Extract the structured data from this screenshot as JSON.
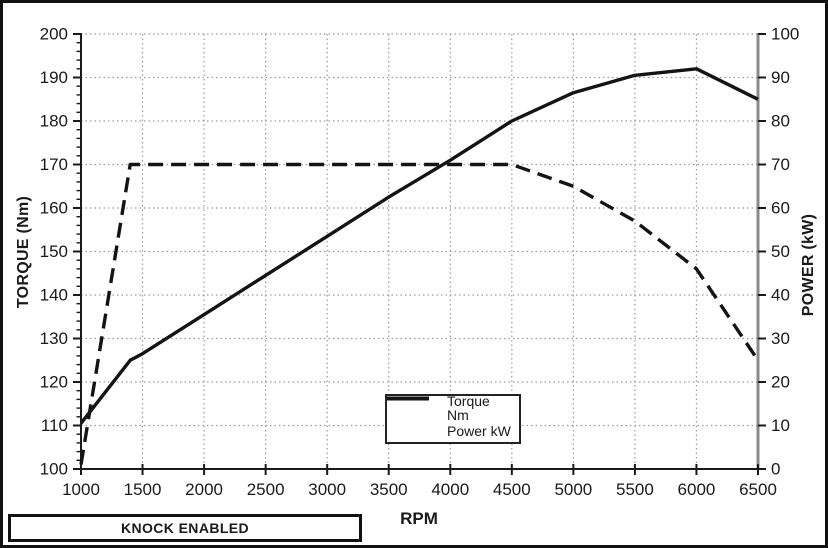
{
  "annotation": {
    "label": "KNOCK ENABLED"
  },
  "colors": {
    "line": "#141414",
    "grid": "#9a9a9a",
    "right_spine": "#8a8a8a",
    "spine": "#1a1a1a",
    "background": "#ffffff",
    "text": "#1a1a1a"
  },
  "chart_data": {
    "type": "line",
    "title": "",
    "xlabel": "RPM",
    "x_range": [
      1000,
      6500
    ],
    "x_ticks": [
      1000,
      1500,
      2000,
      2500,
      3000,
      3500,
      4000,
      4500,
      5000,
      5500,
      6000,
      6500
    ],
    "x_tick_labels": [
      "1000",
      "1500",
      "2000",
      "2500",
      "3000",
      "3500",
      "4000",
      "4500",
      "5000",
      "5500",
      "6000",
      "6500"
    ],
    "grid": true,
    "axes": {
      "left": {
        "label": "TORQUE (Nm)",
        "range": [
          100,
          200
        ],
        "tick_step": 10,
        "minor_tick_step": 2,
        "tick_labels": [
          "100",
          "110",
          "120",
          "130",
          "140",
          "150",
          "160",
          "170",
          "180",
          "190",
          "200"
        ]
      },
      "right": {
        "label": "POWER (kW)",
        "range": [
          0,
          100
        ],
        "tick_step": 10,
        "tick_labels": [
          "0",
          "10",
          "20",
          "30",
          "40",
          "50",
          "60",
          "70",
          "80",
          "90",
          "100"
        ]
      }
    },
    "legend": {
      "position": "inside-bottom-center",
      "items": [
        "Torque Nm",
        "Power kW"
      ]
    },
    "series": [
      {
        "name": "Torque Nm",
        "axis": "left",
        "line_style": "dashed",
        "points": [
          [
            1000,
            101
          ],
          [
            1400,
            170
          ],
          [
            1500,
            170
          ],
          [
            2000,
            170
          ],
          [
            2500,
            170
          ],
          [
            3000,
            170
          ],
          [
            3500,
            170
          ],
          [
            4000,
            170
          ],
          [
            4500,
            170
          ],
          [
            5000,
            165
          ],
          [
            5500,
            157
          ],
          [
            6000,
            146
          ],
          [
            6500,
            125
          ]
        ]
      },
      {
        "name": "Power kW",
        "axis": "right",
        "line_style": "solid",
        "points": [
          [
            1000,
            10.5
          ],
          [
            1400,
            25
          ],
          [
            1500,
            26.5
          ],
          [
            2000,
            35.5
          ],
          [
            2500,
            44.5
          ],
          [
            3000,
            53.5
          ],
          [
            3500,
            62.5
          ],
          [
            4000,
            71
          ],
          [
            4500,
            80
          ],
          [
            5000,
            86.5
          ],
          [
            5500,
            90.5
          ],
          [
            6000,
            92
          ],
          [
            6500,
            85
          ]
        ]
      }
    ]
  }
}
